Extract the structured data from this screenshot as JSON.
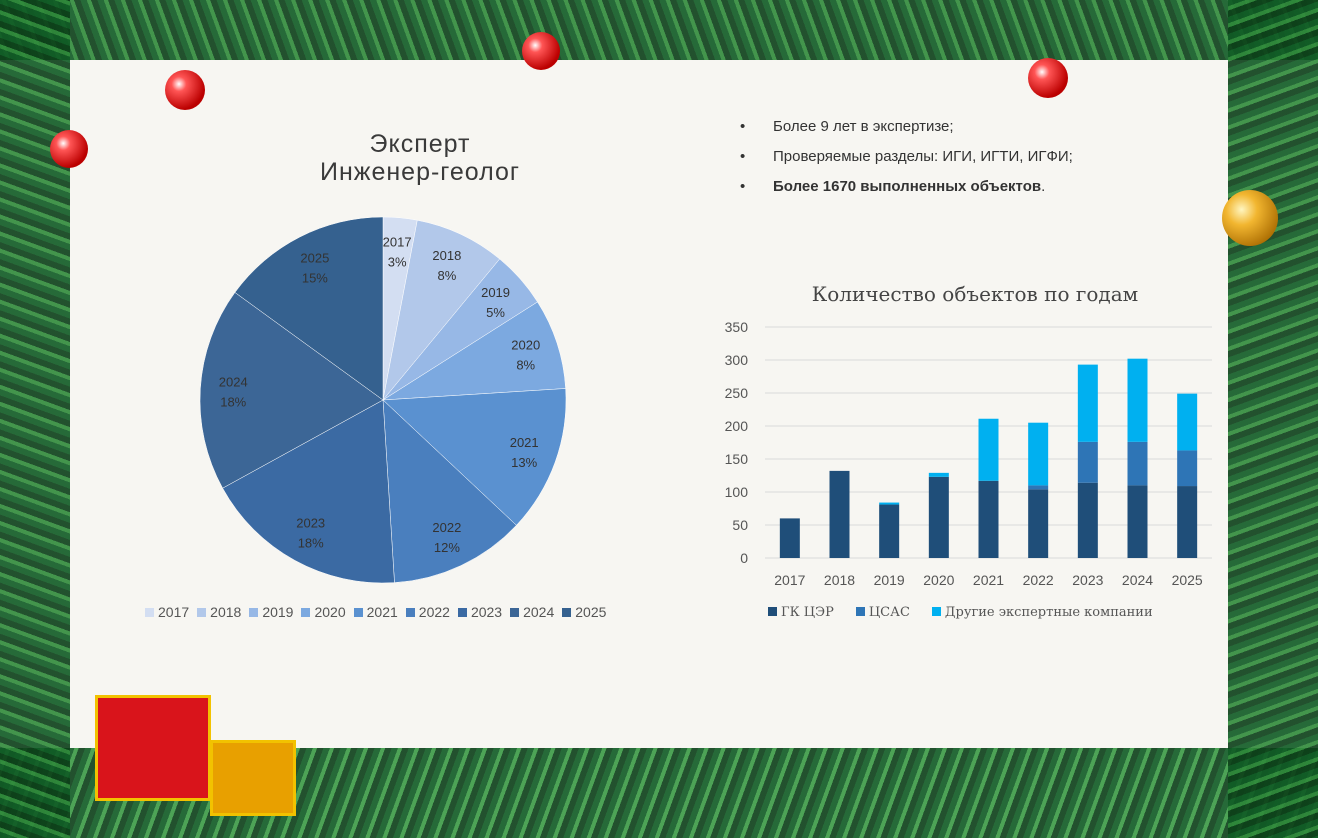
{
  "slide": {
    "title_line1": "Эксперт",
    "title_line2": "Инженер-геолог",
    "bullets": [
      {
        "text": "Более 9 лет в экспертизе;",
        "bold": false
      },
      {
        "text": "Проверяемые разделы: ИГИ, ИГТИ, ИГФИ;",
        "bold": false
      },
      {
        "text": "Более 1670 выполненных объектов",
        "bold": true,
        "suffix": "."
      }
    ]
  },
  "chart_data": [
    {
      "type": "pie",
      "categories": [
        "2017",
        "2018",
        "2019",
        "2020",
        "2021",
        "2022",
        "2023",
        "2024",
        "2025"
      ],
      "values": [
        3,
        8,
        5,
        8,
        13,
        12,
        18,
        18,
        15
      ],
      "labels": [
        "3%",
        "8%",
        "5%",
        "8%",
        "13%",
        "12%",
        "18%",
        "18%",
        "15%"
      ],
      "colors": [
        "#d3def2",
        "#b2c8ea",
        "#97b8e6",
        "#7ca9e0",
        "#5a91d0",
        "#4a7fbe",
        "#3b6aa3",
        "#3c6696",
        "#35618f"
      ],
      "legend_position": "bottom"
    },
    {
      "type": "bar",
      "stacked": true,
      "title": "Количество объектов по годам",
      "categories": [
        "2017",
        "2018",
        "2019",
        "2020",
        "2021",
        "2022",
        "2023",
        "2024",
        "2025"
      ],
      "series": [
        {
          "name": "ГК ЦЭР",
          "values": [
            60,
            132,
            81,
            123,
            117,
            104,
            114,
            110,
            109
          ],
          "color": "#1f4e79"
        },
        {
          "name": "ЦСАС",
          "values": [
            0,
            0,
            0,
            0,
            0,
            6,
            62,
            66,
            54
          ],
          "color": "#2e75b6"
        },
        {
          "name": "Другие экспертные компании",
          "values": [
            0,
            0,
            3,
            6,
            94,
            95,
            117,
            126,
            86
          ],
          "color": "#00b0f0"
        }
      ],
      "yticks": [
        0,
        50,
        100,
        150,
        200,
        250,
        300,
        350
      ],
      "ylim": [
        0,
        350
      ],
      "grid": true,
      "legend_position": "bottom"
    }
  ]
}
